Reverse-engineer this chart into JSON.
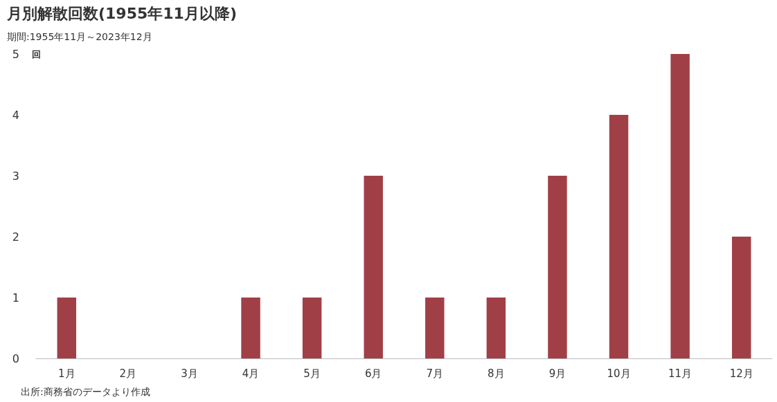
{
  "chart_data": {
    "type": "bar",
    "title": "月別解散回数(1955年11月以降)",
    "subtitle": "期間:1955年11月～2023年12月",
    "ylabel": "回",
    "categories": [
      "1月",
      "2月",
      "3月",
      "4月",
      "5月",
      "6月",
      "7月",
      "8月",
      "9月",
      "10月",
      "11月",
      "12月"
    ],
    "values": [
      1,
      0,
      0,
      1,
      1,
      3,
      1,
      1,
      3,
      4,
      5,
      2
    ],
    "color": "#a13f47",
    "ylim": [
      0,
      5
    ],
    "yticks": [
      0,
      1,
      2,
      3,
      4,
      5
    ],
    "grid": false,
    "annotations": [
      "出所:商務省のデータより作成"
    ]
  }
}
